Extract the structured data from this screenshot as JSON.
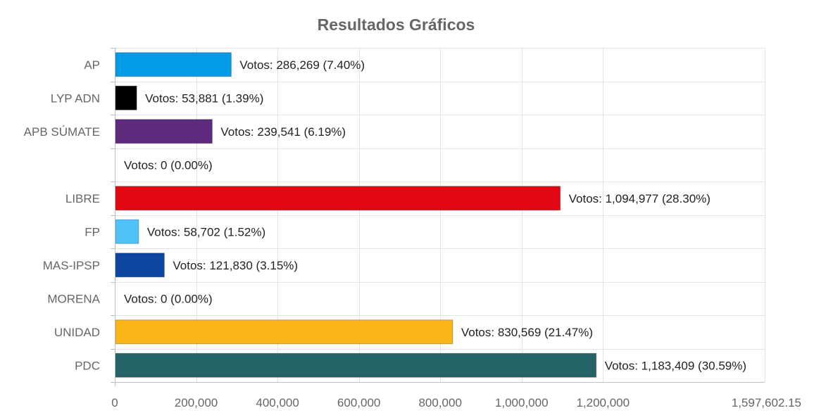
{
  "chart_data": {
    "type": "bar",
    "orientation": "horizontal",
    "title": "Resultados Gráficos",
    "categories": [
      "AP",
      "LYP ADN",
      "APB SÚMATE",
      "",
      "LIBRE",
      "FP",
      "MAS-IPSP",
      "MORENA",
      "UNIDAD",
      "PDC"
    ],
    "values": [
      286269,
      53881,
      239541,
      0,
      1094977,
      58702,
      121830,
      0,
      830569,
      1183409
    ],
    "data_labels": [
      "Votos: 286,269 (7.40%)",
      "Votos: 53,881 (1.39%)",
      "Votos: 239,541 (6.19%)",
      "Votos: 0 (0.00%)",
      "Votos: 1,094,977 (28.30%)",
      "Votos: 58,702 (1.52%)",
      "Votos: 121,830 (3.15%)",
      "Votos: 0 (0.00%)",
      "Votos: 830,569 (21.47%)",
      "Votos: 1,183,409 (30.59%)"
    ],
    "colors": [
      "#039be5",
      "#000000",
      "#5e2a7e",
      "#cccccc",
      "#e30613",
      "#4fc3f7",
      "#0d47a1",
      "#cccccc",
      "#fbb516",
      "#246466"
    ],
    "x_ticks": [
      0,
      200000,
      400000,
      600000,
      800000,
      1000000,
      1200000,
      1597602.15
    ],
    "x_tick_labels": [
      "0",
      "200,000",
      "400,000",
      "600,000",
      "800,000",
      "1,000,000",
      "1,200,000",
      "1,597,602.15"
    ],
    "xlim": [
      0,
      1597602.15
    ],
    "grid": true
  }
}
